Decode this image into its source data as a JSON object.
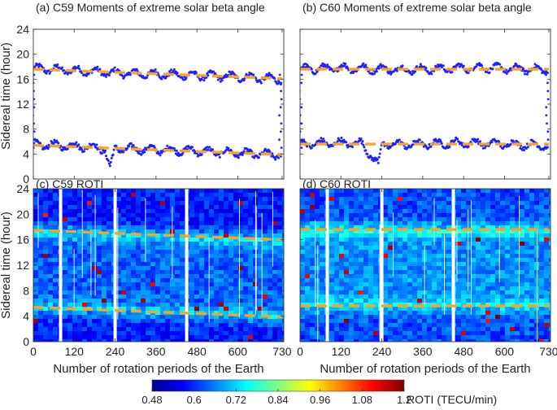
{
  "chart_data": [
    {
      "panel": "a",
      "type": "scatter",
      "title": "(a) C59 Moments of extreme solar beta angle",
      "xlabel": "",
      "ylabel": "Sidereal time (hour)",
      "xlim": [
        0,
        735
      ],
      "ylim": [
        0,
        24
      ],
      "yticks": [
        "0",
        "4",
        "8",
        "12",
        "16",
        "20",
        "24"
      ],
      "grid": false,
      "point_color": "#1f1fff",
      "trend_color": "#f5a623",
      "series": [
        {
          "x": [
            0,
            60,
            120,
            180,
            240,
            300,
            360,
            420,
            480,
            540,
            600,
            660,
            720
          ],
          "y": [
            17.7,
            17.6,
            17.4,
            17.2,
            17.0,
            16.9,
            16.8,
            16.7,
            16.6,
            16.5,
            16.4,
            16.2,
            16.0
          ]
        },
        {
          "x": [
            0,
            60,
            120,
            180,
            210,
            225,
            240,
            300,
            360,
            420,
            480,
            540,
            600,
            660,
            720
          ],
          "y": [
            5.5,
            5.4,
            5.3,
            5.1,
            4.8,
            1.7,
            4.9,
            4.8,
            4.7,
            4.6,
            4.5,
            4.3,
            4.2,
            4.0,
            3.9
          ]
        }
      ],
      "trend_lines": [
        {
          "x": [
            0,
            730
          ],
          "y": [
            17.6,
            16.1
          ]
        },
        {
          "x": [
            0,
            730
          ],
          "y": [
            5.4,
            3.9
          ]
        }
      ]
    },
    {
      "panel": "b",
      "type": "scatter",
      "title": "(b) C60 Moments of extreme solar beta angle",
      "xlabel": "",
      "ylabel": "",
      "xlim": [
        0,
        735
      ],
      "ylim": [
        0,
        24
      ],
      "grid": false,
      "point_color": "#1f1fff",
      "trend_color": "#f5a623",
      "series": [
        {
          "x": [
            0,
            60,
            120,
            180,
            240,
            300,
            360,
            420,
            480,
            540,
            600,
            660,
            720
          ],
          "y": [
            17.6,
            17.7,
            17.8,
            17.7,
            17.6,
            17.5,
            17.6,
            17.7,
            17.8,
            17.9,
            17.7,
            17.6,
            17.5
          ]
        },
        {
          "x": [
            0,
            60,
            120,
            180,
            230,
            240,
            300,
            360,
            420,
            480,
            540,
            600,
            660,
            720
          ],
          "y": [
            5.6,
            5.7,
            5.8,
            5.7,
            2.3,
            5.6,
            5.5,
            5.6,
            5.7,
            5.8,
            5.7,
            5.6,
            5.5,
            5.4
          ]
        }
      ],
      "trend_lines": [
        {
          "x": [
            0,
            730
          ],
          "y": [
            17.6,
            17.6
          ]
        },
        {
          "x": [
            0,
            730
          ],
          "y": [
            5.6,
            5.6
          ]
        }
      ]
    },
    {
      "panel": "c",
      "type": "heatmap",
      "title": "(c) C59 ROTI",
      "xlabel": "Number of rotation periods of the Earth",
      "ylabel": "Sidereal time (hour)",
      "xlim": [
        0,
        735
      ],
      "ylim": [
        0,
        24
      ],
      "xticks": [
        "0",
        "120",
        "240",
        "360",
        "480",
        "600",
        "730"
      ],
      "yticks": [
        "0",
        "4",
        "8",
        "12",
        "16",
        "20",
        "24"
      ],
      "trend_lines": [
        {
          "x": [
            0,
            730
          ],
          "y": [
            17.5,
            16.0
          ]
        },
        {
          "x": [
            0,
            730
          ],
          "y": [
            5.4,
            3.9
          ]
        }
      ],
      "gaps": [
        80,
        240,
        450
      ]
    },
    {
      "panel": "d",
      "type": "heatmap",
      "title": "(d) C60 ROTI",
      "xlabel": "Number of rotation periods of the Earth",
      "ylabel": "",
      "xlim": [
        0,
        735
      ],
      "ylim": [
        0,
        24
      ],
      "xticks": [
        "0",
        "120",
        "240",
        "360",
        "480",
        "600",
        "730"
      ],
      "trend_lines": [
        {
          "x": [
            0,
            730
          ],
          "y": [
            17.6,
            17.6
          ]
        },
        {
          "x": [
            0,
            730
          ],
          "y": [
            5.6,
            5.6
          ]
        }
      ],
      "gaps": [
        80,
        240,
        450
      ]
    }
  ],
  "colorbar": {
    "label": "ROTI (TECU/min)",
    "min": 0.48,
    "max": 1.2,
    "ticks": [
      "0.48",
      "0.6",
      "0.72",
      "0.84",
      "0.96",
      "1.08",
      "1.2"
    ],
    "colors": [
      "#00008f",
      "#0000ff",
      "#0080ff",
      "#00ffff",
      "#80ff80",
      "#ffff00",
      "#ff8000",
      "#ff0000",
      "#800000"
    ]
  }
}
